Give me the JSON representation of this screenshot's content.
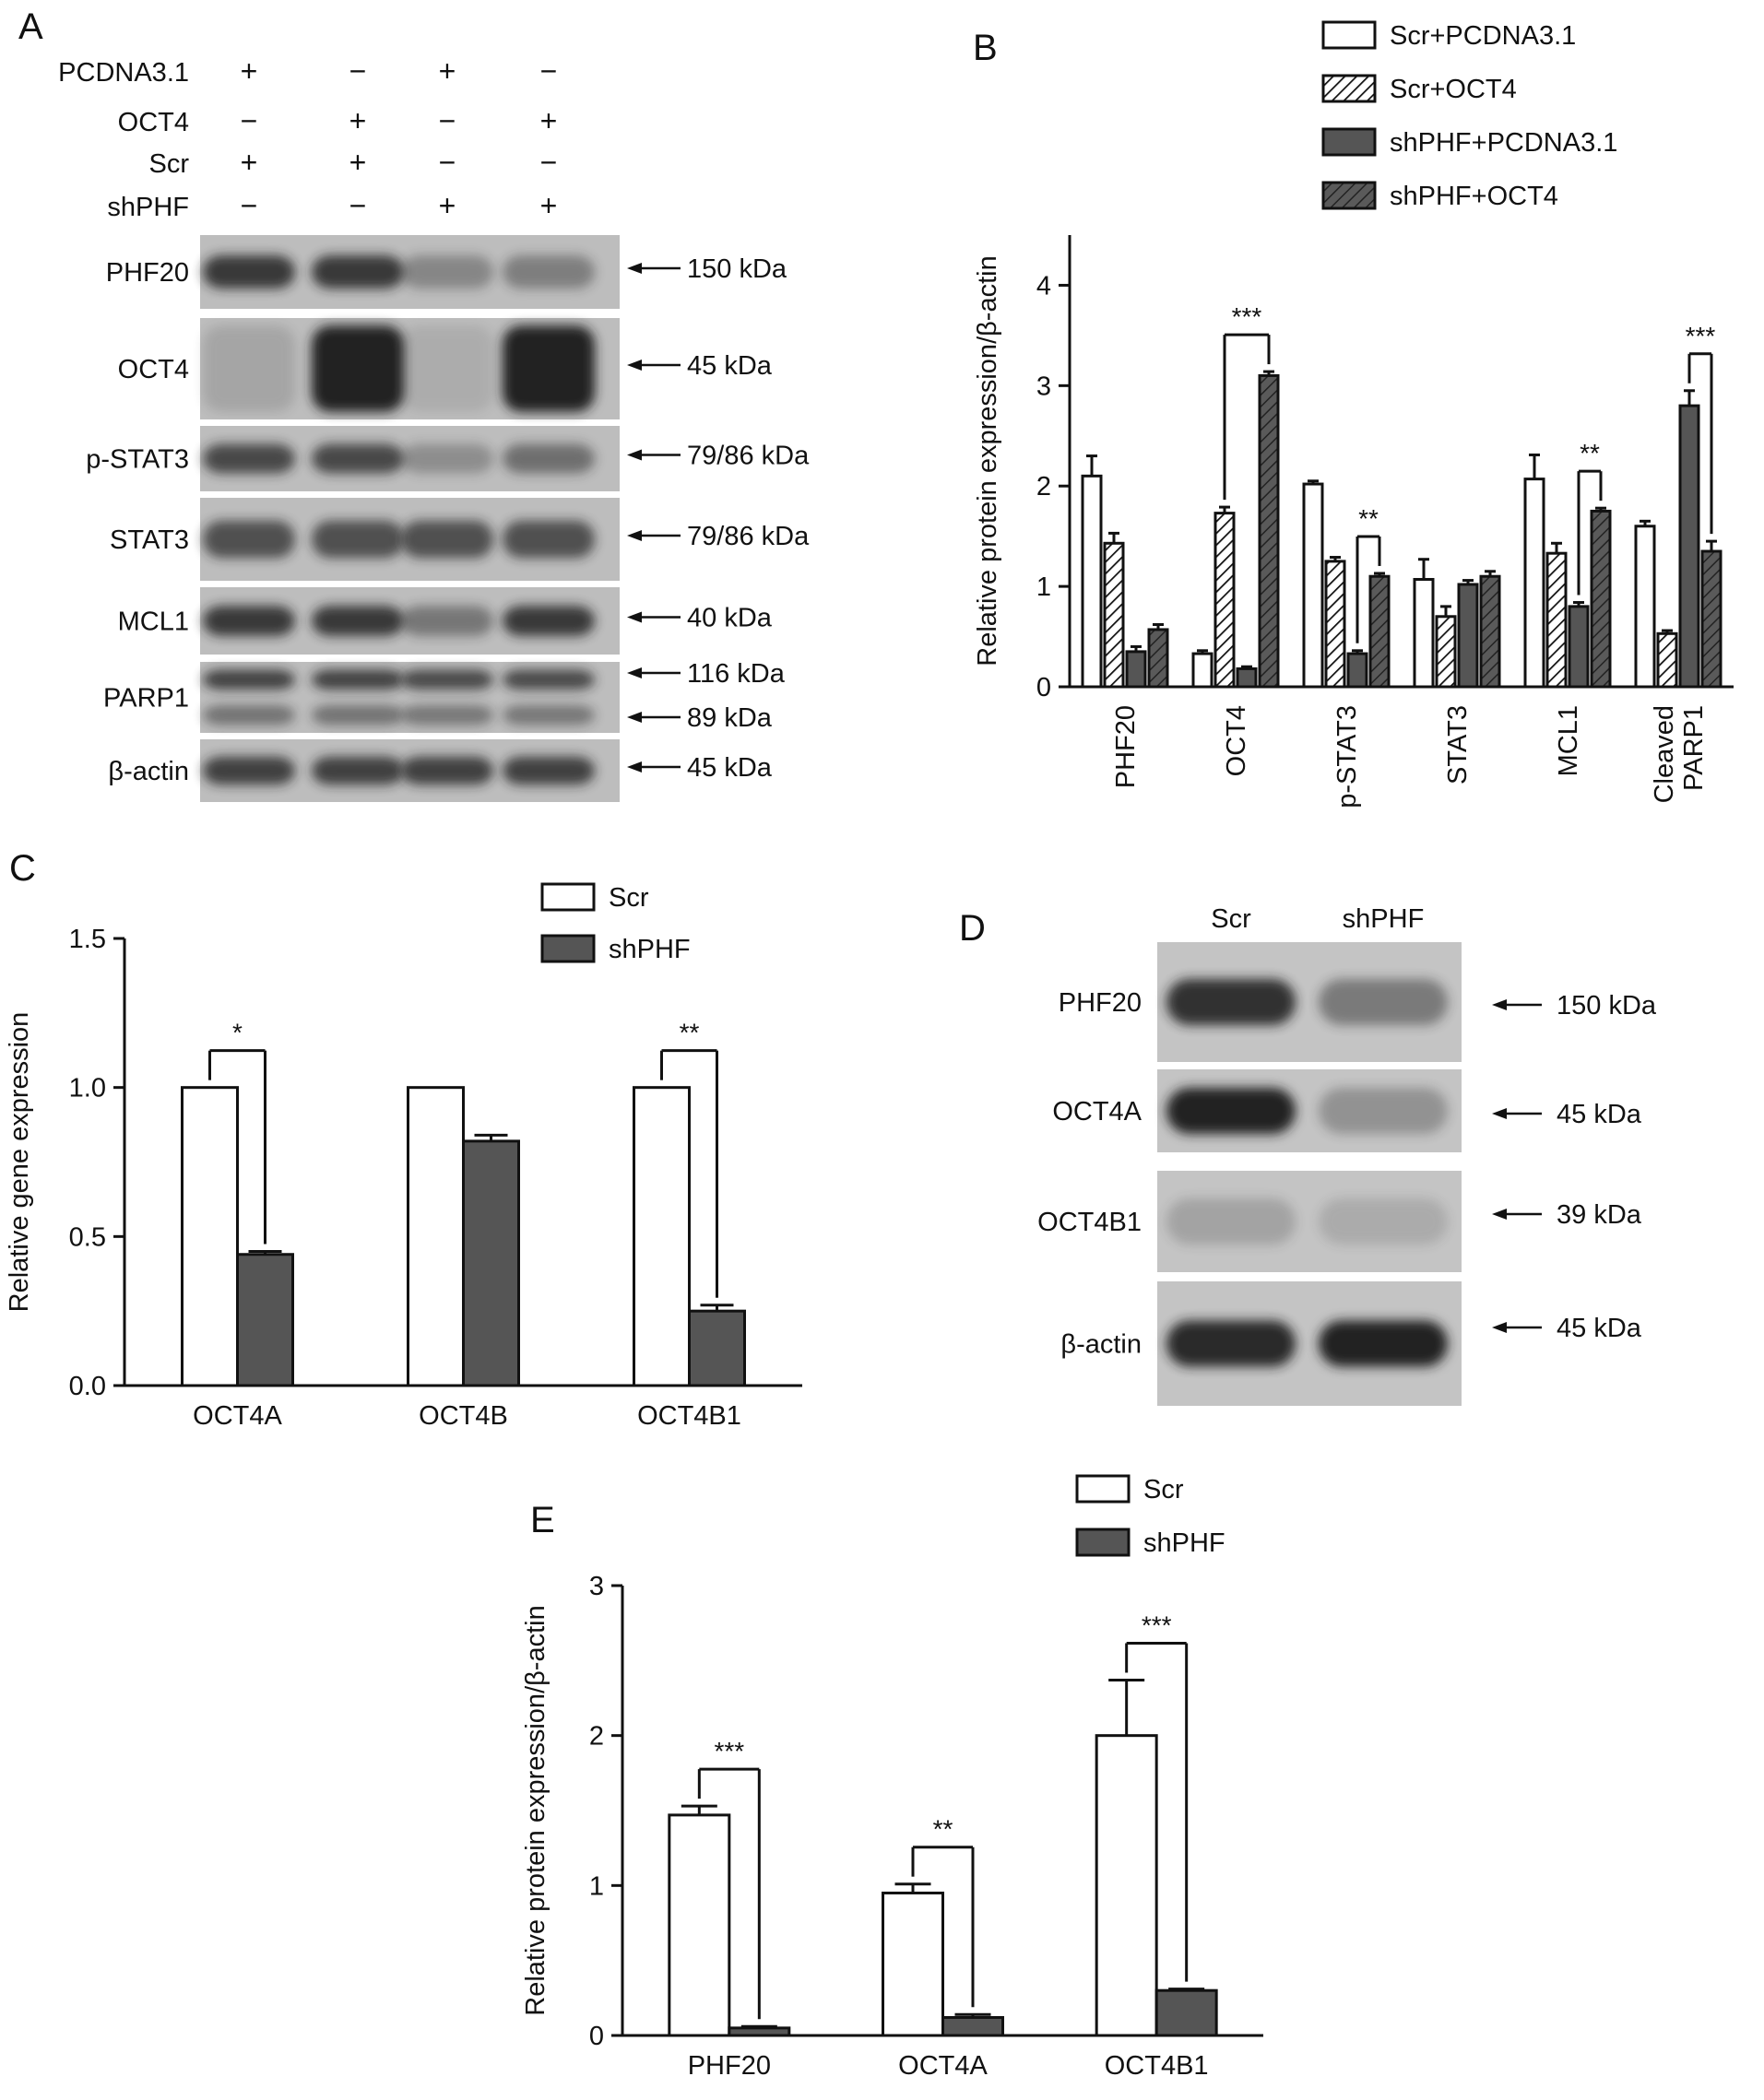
{
  "panel_labels": {
    "A": "A",
    "B": "B",
    "C": "C",
    "D": "D",
    "E": "E"
  },
  "colors": {
    "scr": "#ffffff",
    "shphf": "#555555",
    "axis": "#111111",
    "blot_bg": "#bdbdbd",
    "band": "#222222"
  },
  "panelA": {
    "treatment_rows": [
      {
        "label": "PCDNA3.1",
        "signs": [
          "+",
          "−",
          "+",
          "−"
        ]
      },
      {
        "label": "OCT4",
        "signs": [
          "−",
          "+",
          "−",
          "+"
        ]
      },
      {
        "label": "Scr",
        "signs": [
          "+",
          "+",
          "−",
          "−"
        ]
      },
      {
        "label": "shPHF",
        "signs": [
          "−",
          "−",
          "+",
          "+"
        ]
      }
    ],
    "blots": [
      {
        "label": "PHF20",
        "sizes": [
          "150 kDa"
        ],
        "band": [
          0.85,
          0.85,
          0.35,
          0.4
        ]
      },
      {
        "label": "OCT4",
        "sizes": [
          "45 kDa"
        ],
        "band": [
          0.15,
          1.0,
          0.1,
          1.0
        ]
      },
      {
        "label": "p-STAT3",
        "sizes": [
          "79/86 kDa"
        ],
        "band": [
          0.75,
          0.75,
          0.3,
          0.5
        ]
      },
      {
        "label": "STAT3",
        "sizes": [
          "79/86 kDa"
        ],
        "band": [
          0.7,
          0.7,
          0.7,
          0.7
        ]
      },
      {
        "label": "MCL1",
        "sizes": [
          "40 kDa"
        ],
        "band": [
          0.85,
          0.85,
          0.45,
          0.85
        ]
      },
      {
        "label": "PARP1",
        "sizes": [
          "116 kDa",
          "89 kDa"
        ],
        "band": [
          0.8,
          0.8,
          0.75,
          0.75
        ]
      },
      {
        "label": "β-actin",
        "sizes": [
          "45 kDa"
        ],
        "band": [
          0.8,
          0.8,
          0.8,
          0.8
        ]
      }
    ]
  },
  "panelD": {
    "lanes": [
      "Scr",
      "shPHF"
    ],
    "blots": [
      {
        "label": "PHF20",
        "size": "150 kDa",
        "band": [
          0.9,
          0.45
        ]
      },
      {
        "label": "OCT4A",
        "size": "45 kDa",
        "band": [
          1.0,
          0.3
        ]
      },
      {
        "label": "OCT4B1",
        "size": "39 kDa",
        "band": [
          0.2,
          0.15
        ]
      },
      {
        "label": "β-actin",
        "size": "45 kDa",
        "band": [
          0.95,
          1.0
        ]
      }
    ]
  },
  "chart_data": [
    {
      "panel": "B",
      "type": "bar",
      "categories": [
        "PHF20",
        "OCT4",
        "p-STAT3",
        "STAT3",
        "MCL1",
        "Cleaved PARP1"
      ],
      "category_lines": [
        [
          "PHF20"
        ],
        [
          "OCT4"
        ],
        [
          "p-STAT3"
        ],
        [
          "STAT3"
        ],
        [
          "MCL1"
        ],
        [
          "Cleaved",
          "PARP1"
        ]
      ],
      "series": [
        {
          "name": "Scr+PCDNA3.1",
          "values": [
            2.1,
            0.33,
            2.02,
            1.07,
            2.07,
            1.6
          ],
          "errors": [
            0.2,
            0.03,
            0.03,
            0.2,
            0.24,
            0.05
          ],
          "fill": "white"
        },
        {
          "name": "Scr+OCT4",
          "values": [
            1.43,
            1.73,
            1.25,
            0.7,
            1.33,
            0.53
          ],
          "errors": [
            0.1,
            0.06,
            0.04,
            0.1,
            0.1,
            0.03
          ],
          "fill": "hatch-white"
        },
        {
          "name": "shPHF+PCDNA3.1",
          "values": [
            0.35,
            0.18,
            0.33,
            1.02,
            0.8,
            2.8
          ],
          "errors": [
            0.05,
            0.02,
            0.03,
            0.04,
            0.04,
            0.15
          ],
          "fill": "dark"
        },
        {
          "name": "shPHF+OCT4",
          "values": [
            0.57,
            3.1,
            1.1,
            1.1,
            1.75,
            1.35
          ],
          "errors": [
            0.05,
            0.04,
            0.03,
            0.05,
            0.03,
            0.1
          ],
          "fill": "hatch-dark"
        }
      ],
      "ylabel": "Relative protein expression/β-actin",
      "ylim": [
        0,
        4.5
      ],
      "yticks": [
        0,
        1,
        2,
        3,
        4
      ],
      "significance": [
        {
          "category": 1,
          "from": 1,
          "to": 3,
          "label": "***"
        },
        {
          "category": 2,
          "from": 2,
          "to": 3,
          "label": "**"
        },
        {
          "category": 4,
          "from": 2,
          "to": 3,
          "label": "**"
        },
        {
          "category": 5,
          "from": 2,
          "to": 3,
          "label": "***"
        }
      ],
      "legend": "top-right"
    },
    {
      "panel": "C",
      "type": "bar",
      "categories": [
        "OCT4A",
        "OCT4B",
        "OCT4B1"
      ],
      "series": [
        {
          "name": "Scr",
          "values": [
            1.0,
            1.0,
            1.0
          ],
          "errors": [
            0,
            0,
            0
          ]
        },
        {
          "name": "shPHF",
          "values": [
            0.44,
            0.82,
            0.25
          ],
          "errors": [
            0.01,
            0.02,
            0.02
          ]
        }
      ],
      "ylabel": "Relative gene expression",
      "ylim": [
        0,
        1.5
      ],
      "yticks": [
        "0.0",
        "0.5",
        "1.0",
        "1.5"
      ],
      "significance": [
        {
          "category": 0,
          "label": "*"
        },
        {
          "category": 2,
          "label": "**"
        }
      ],
      "legend": "top-right"
    },
    {
      "panel": "E",
      "type": "bar",
      "categories": [
        "PHF20",
        "OCT4A",
        "OCT4B1"
      ],
      "series": [
        {
          "name": "Scr",
          "values": [
            1.47,
            0.95,
            2.0
          ],
          "errors": [
            0.06,
            0.06,
            0.37
          ]
        },
        {
          "name": "shPHF",
          "values": [
            0.05,
            0.12,
            0.3
          ],
          "errors": [
            0.01,
            0.02,
            0.01
          ]
        }
      ],
      "ylabel": "Relative protein expression/β-actin",
      "ylim": [
        0,
        3
      ],
      "yticks": [
        0,
        1,
        2,
        3
      ],
      "significance": [
        {
          "category": 0,
          "label": "***"
        },
        {
          "category": 1,
          "label": "**"
        },
        {
          "category": 2,
          "label": "***"
        }
      ],
      "legend": "top-right"
    }
  ]
}
